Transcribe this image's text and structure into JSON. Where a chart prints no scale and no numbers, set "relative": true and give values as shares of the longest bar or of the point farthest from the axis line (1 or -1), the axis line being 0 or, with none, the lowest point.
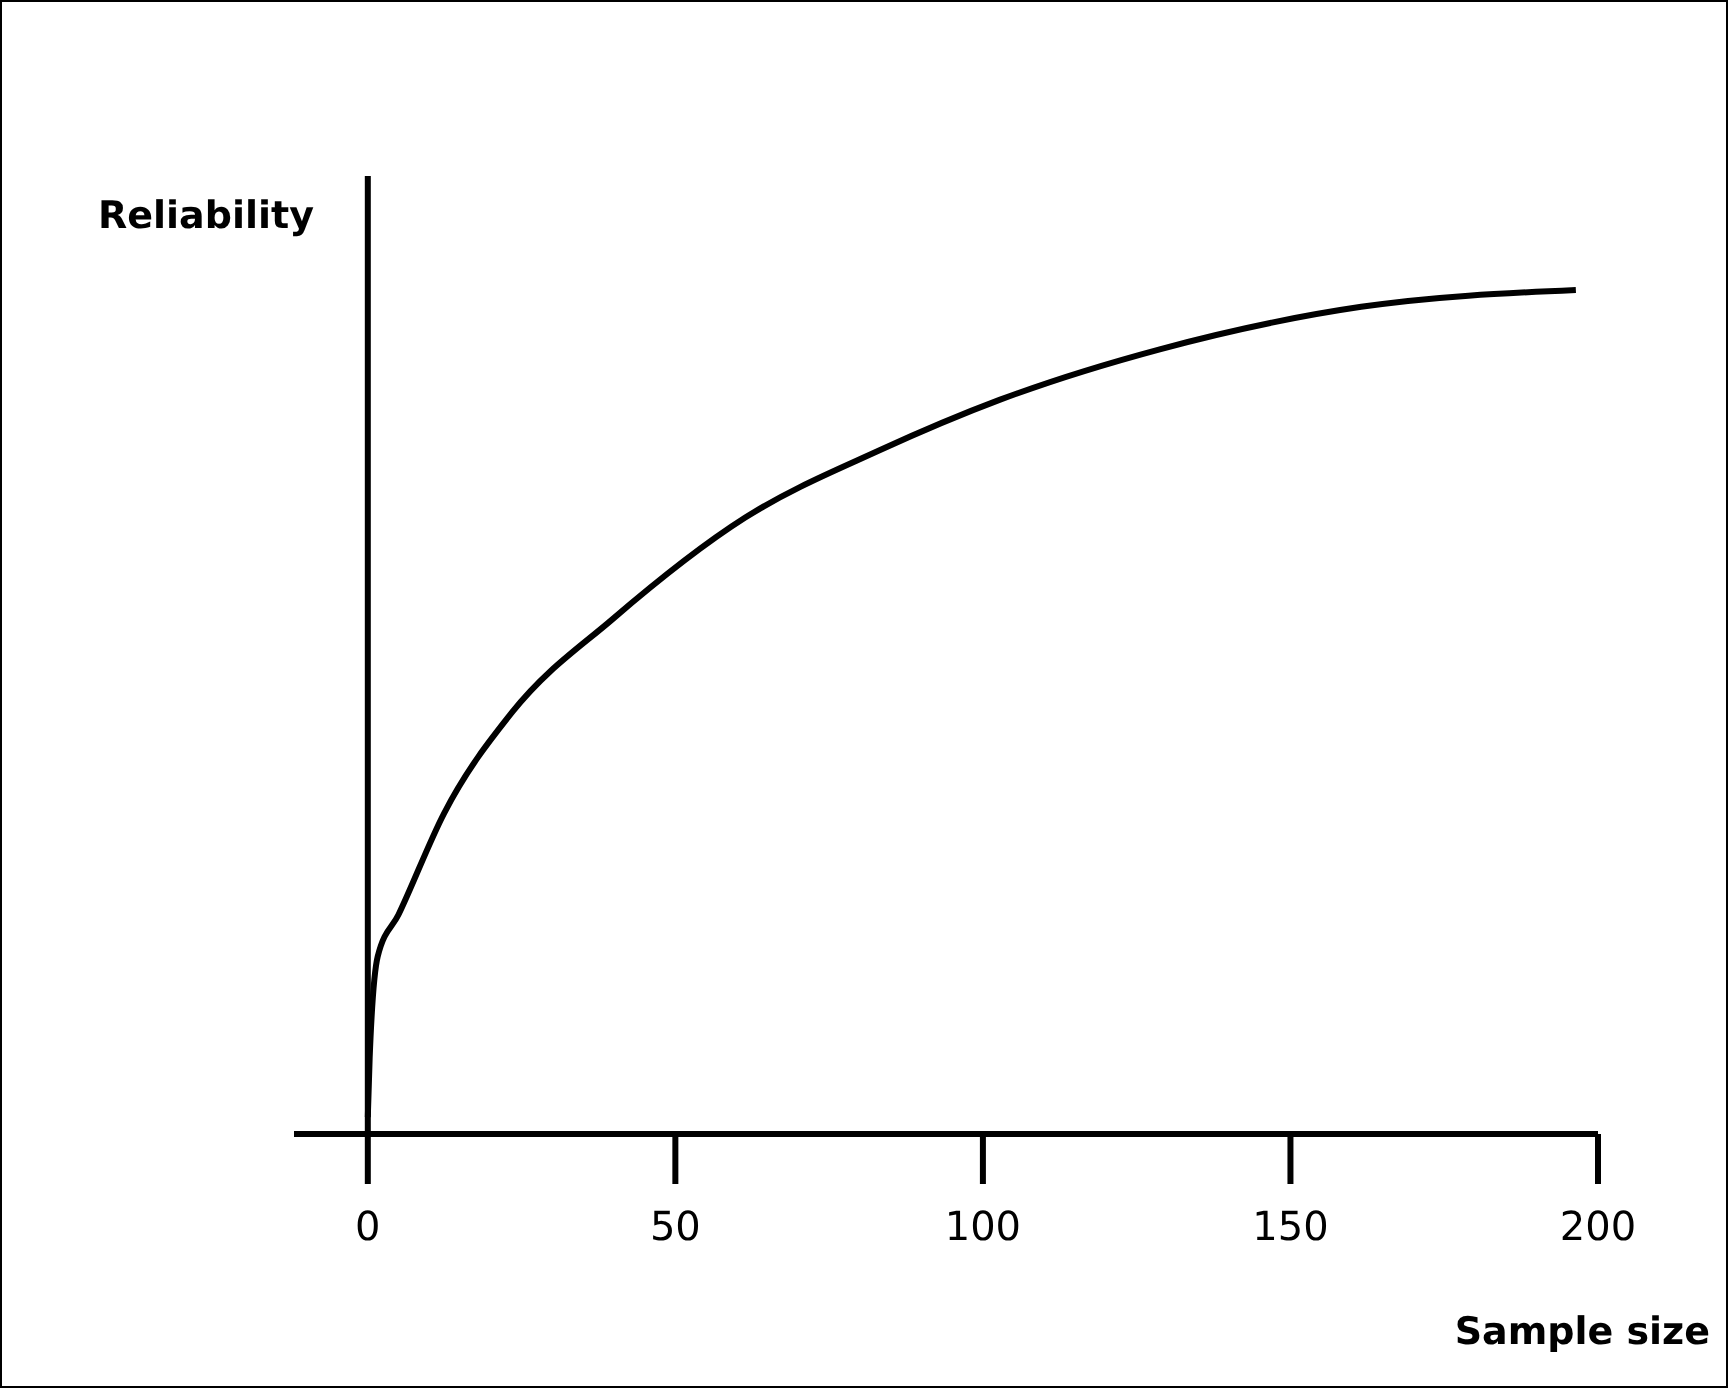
{
  "chart_data": {
    "type": "line",
    "xlabel": "Sample size",
    "ylabel": "Reliability",
    "relative": true,
    "x": [
      0,
      0.3,
      1.6,
      5,
      12.4,
      23.5,
      39.8,
      61.3,
      83.2,
      102.8,
      128.9,
      161.5,
      196.4
    ],
    "series": [
      {
        "color": "#000000",
        "values": [
          0.02,
          0.09,
          0.21,
          0.26,
          0.38,
          0.5,
          0.61,
          0.73,
          0.81,
          0.87,
          0.93,
          0.98,
          1.0
        ]
      }
    ],
    "xlim": [
      -12,
      200
    ],
    "xticks": [
      0,
      50,
      100,
      150,
      200
    ],
    "marker": "none",
    "line_style": "solid"
  }
}
